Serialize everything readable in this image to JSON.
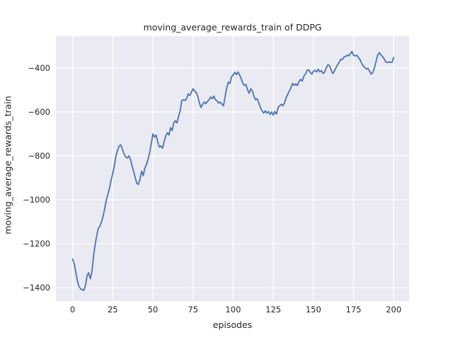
{
  "figure": {
    "title": "moving_average_rewards_train of DDPG",
    "xlabel": "episodes",
    "ylabel": "moving_average_rewards_train"
  },
  "colors": {
    "line": "#4c72b0",
    "axes_background": "#eaeaf2",
    "grid": "#ffffff",
    "text": "#262626"
  },
  "chart_data": {
    "type": "line",
    "title": "moving_average_rewards_train of DDPG",
    "xlabel": "episodes",
    "ylabel": "moving_average_rewards_train",
    "x_ticks": [
      0,
      25,
      50,
      75,
      100,
      125,
      150,
      175,
      200
    ],
    "y_ticks": [
      -400,
      -600,
      -800,
      -1000,
      -1200,
      -1400
    ],
    "xlim": [
      -10.4,
      209.6
    ],
    "ylim": [
      -1461,
      -255
    ],
    "grid": true,
    "legend_position": "none",
    "series": [
      {
        "name": "DDPG moving average rewards (train)",
        "x_start": 0,
        "x_step": 1,
        "y": [
          -1270,
          -1290,
          -1330,
          -1370,
          -1395,
          -1405,
          -1410,
          -1412,
          -1390,
          -1345,
          -1332,
          -1360,
          -1330,
          -1260,
          -1205,
          -1165,
          -1130,
          -1120,
          -1100,
          -1075,
          -1040,
          -1000,
          -975,
          -945,
          -910,
          -880,
          -845,
          -800,
          -775,
          -755,
          -750,
          -770,
          -790,
          -805,
          -810,
          -800,
          -815,
          -845,
          -870,
          -900,
          -925,
          -930,
          -905,
          -870,
          -890,
          -855,
          -840,
          -815,
          -785,
          -745,
          -700,
          -715,
          -705,
          -735,
          -760,
          -755,
          -765,
          -735,
          -710,
          -695,
          -705,
          -672,
          -685,
          -650,
          -640,
          -650,
          -620,
          -595,
          -548,
          -545,
          -548,
          -540,
          -518,
          -525,
          -510,
          -495,
          -505,
          -512,
          -530,
          -560,
          -580,
          -565,
          -555,
          -562,
          -552,
          -545,
          -532,
          -540,
          -528,
          -545,
          -550,
          -560,
          -555,
          -565,
          -572,
          -530,
          -490,
          -465,
          -470,
          -440,
          -432,
          -420,
          -430,
          -418,
          -432,
          -448,
          -470,
          -480,
          -475,
          -500,
          -515,
          -495,
          -505,
          -530,
          -545,
          -540,
          -560,
          -580,
          -595,
          -605,
          -595,
          -605,
          -598,
          -612,
          -600,
          -615,
          -598,
          -610,
          -580,
          -572,
          -565,
          -572,
          -558,
          -535,
          -520,
          -505,
          -490,
          -470,
          -480,
          -472,
          -480,
          -462,
          -452,
          -460,
          -438,
          -428,
          -412,
          -408,
          -420,
          -428,
          -415,
          -410,
          -418,
          -405,
          -418,
          -412,
          -425,
          -418,
          -400,
          -385,
          -390,
          -408,
          -425,
          -415,
          -400,
          -385,
          -375,
          -360,
          -362,
          -350,
          -348,
          -342,
          -345,
          -335,
          -325,
          -342,
          -345,
          -342,
          -352,
          -362,
          -378,
          -390,
          -398,
          -405,
          -402,
          -415,
          -428,
          -420,
          -400,
          -370,
          -342,
          -330,
          -340,
          -348,
          -358,
          -372,
          -375,
          -372,
          -375,
          -373,
          -352
        ]
      }
    ]
  }
}
